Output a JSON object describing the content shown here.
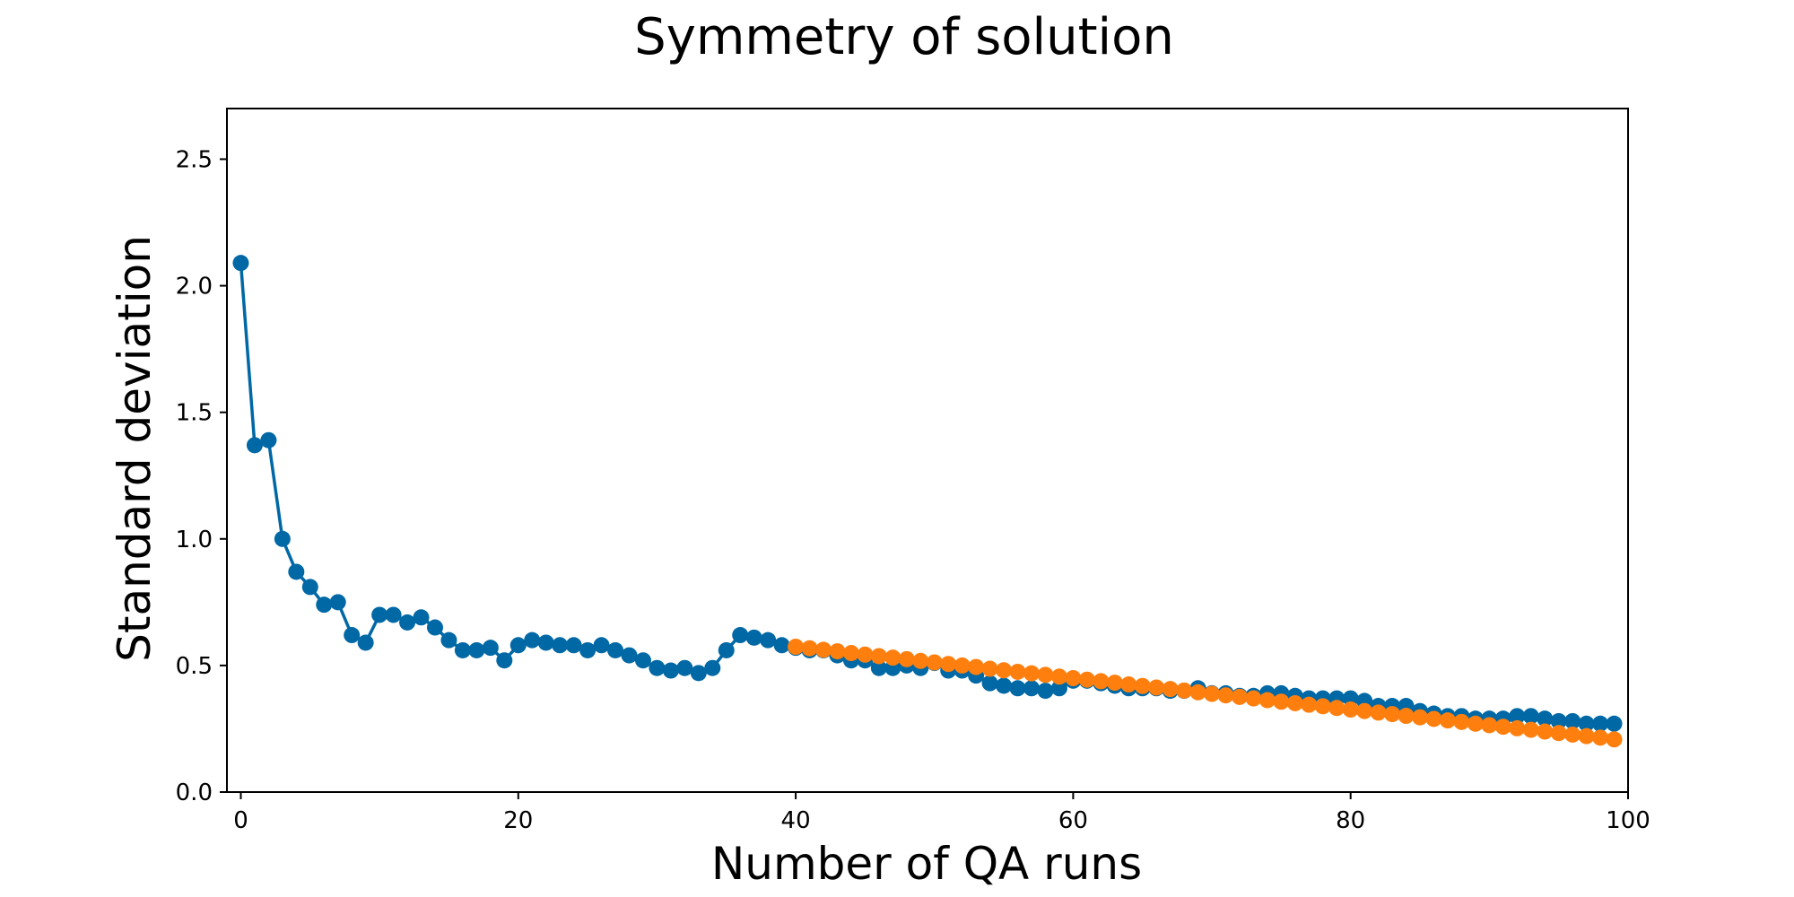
{
  "chart_data": {
    "type": "line",
    "title": "Symmetry of solution",
    "xlabel": "Number of QA runs",
    "ylabel": "Standard deviation",
    "xlim": [
      -1,
      100
    ],
    "ylim": [
      0,
      2.7
    ],
    "xticks": [
      0,
      20,
      40,
      60,
      80,
      100
    ],
    "yticks": [
      0.0,
      0.5,
      1.0,
      1.5,
      2.0,
      2.5
    ],
    "xtick_labels": [
      "0",
      "20",
      "40",
      "60",
      "80",
      "100"
    ],
    "ytick_labels": [
      "0.0",
      "0.5",
      "1.0",
      "1.5",
      "2.0",
      "2.5"
    ],
    "grid": false,
    "legend": "none",
    "series": [
      {
        "color": "#0068a5",
        "marker": "circle",
        "line": true,
        "x": [
          0,
          1,
          2,
          3,
          4,
          5,
          6,
          7,
          8,
          9,
          10,
          11,
          12,
          13,
          14,
          15,
          16,
          17,
          18,
          19,
          20,
          21,
          22,
          23,
          24,
          25,
          26,
          27,
          28,
          29,
          30,
          31,
          32,
          33,
          34,
          35,
          36,
          37,
          38,
          39,
          40,
          41,
          42,
          43,
          44,
          45,
          46,
          47,
          48,
          49,
          50,
          51,
          52,
          53,
          54,
          55,
          56,
          57,
          58,
          59,
          60,
          61,
          62,
          63,
          64,
          65,
          66,
          67,
          68,
          69,
          70,
          71,
          72,
          73,
          74,
          75,
          76,
          77,
          78,
          79,
          80,
          81,
          82,
          83,
          84,
          85,
          86,
          87,
          88,
          89,
          90,
          91,
          92,
          93,
          94,
          95,
          96,
          97,
          98,
          99
        ],
        "y": [
          2.09,
          1.37,
          1.39,
          1.0,
          0.87,
          0.81,
          0.74,
          0.75,
          0.62,
          0.59,
          0.7,
          0.7,
          0.67,
          0.69,
          0.65,
          0.6,
          0.56,
          0.56,
          0.57,
          0.52,
          0.58,
          0.6,
          0.59,
          0.58,
          0.58,
          0.56,
          0.58,
          0.56,
          0.54,
          0.52,
          0.49,
          0.48,
          0.49,
          0.47,
          0.49,
          0.56,
          0.62,
          0.61,
          0.6,
          0.58,
          0.57,
          0.56,
          0.56,
          0.54,
          0.52,
          0.52,
          0.49,
          0.49,
          0.5,
          0.49,
          0.51,
          0.48,
          0.48,
          0.46,
          0.43,
          0.42,
          0.41,
          0.41,
          0.4,
          0.41,
          0.44,
          0.44,
          0.43,
          0.42,
          0.41,
          0.41,
          0.41,
          0.4,
          0.4,
          0.41,
          0.39,
          0.39,
          0.38,
          0.38,
          0.39,
          0.39,
          0.38,
          0.37,
          0.37,
          0.37,
          0.37,
          0.36,
          0.34,
          0.34,
          0.34,
          0.32,
          0.31,
          0.3,
          0.3,
          0.29,
          0.29,
          0.29,
          0.3,
          0.3,
          0.29,
          0.28,
          0.28,
          0.27,
          0.27,
          0.27
        ]
      },
      {
        "color": "#ff7f0e",
        "marker": "circle",
        "line": false,
        "x": [
          40,
          41,
          42,
          43,
          44,
          45,
          46,
          47,
          48,
          49,
          50,
          51,
          52,
          53,
          54,
          55,
          56,
          57,
          58,
          59,
          60,
          61,
          62,
          63,
          64,
          65,
          66,
          67,
          68,
          69,
          70,
          71,
          72,
          73,
          74,
          75,
          76,
          77,
          78,
          79,
          80,
          81,
          82,
          83,
          84,
          85,
          86,
          87,
          88,
          89,
          90,
          91,
          92,
          93,
          94,
          95,
          96,
          97,
          98,
          99
        ],
        "y": [
          0.574,
          0.568,
          0.562,
          0.556,
          0.549,
          0.543,
          0.537,
          0.531,
          0.525,
          0.518,
          0.512,
          0.506,
          0.5,
          0.494,
          0.487,
          0.481,
          0.475,
          0.469,
          0.463,
          0.456,
          0.45,
          0.444,
          0.438,
          0.432,
          0.425,
          0.419,
          0.413,
          0.407,
          0.401,
          0.394,
          0.388,
          0.382,
          0.376,
          0.37,
          0.363,
          0.357,
          0.351,
          0.345,
          0.339,
          0.332,
          0.326,
          0.32,
          0.314,
          0.308,
          0.301,
          0.295,
          0.289,
          0.283,
          0.277,
          0.27,
          0.264,
          0.258,
          0.252,
          0.246,
          0.239,
          0.233,
          0.227,
          0.221,
          0.215,
          0.208
        ]
      }
    ]
  }
}
